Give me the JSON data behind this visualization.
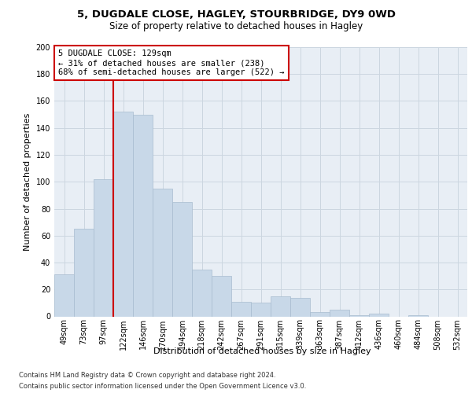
{
  "title_line1": "5, DUGDALE CLOSE, HAGLEY, STOURBRIDGE, DY9 0WD",
  "title_line2": "Size of property relative to detached houses in Hagley",
  "xlabel": "Distribution of detached houses by size in Hagley",
  "ylabel": "Number of detached properties",
  "footnote1": "Contains HM Land Registry data © Crown copyright and database right 2024.",
  "footnote2": "Contains public sector information licensed under the Open Government Licence v3.0.",
  "annotation_line1": "5 DUGDALE CLOSE: 129sqm",
  "annotation_line2": "← 31% of detached houses are smaller (238)",
  "annotation_line3": "68% of semi-detached houses are larger (522) →",
  "bar_color": "#c8d8e8",
  "bar_edge_color": "#a8bccf",
  "grid_color": "#ccd6e0",
  "background_color": "#e8eef5",
  "vline_color": "#cc0000",
  "annotation_box_edge_color": "#cc0000",
  "bin_labels": [
    "49sqm",
    "73sqm",
    "97sqm",
    "122sqm",
    "146sqm",
    "170sqm",
    "194sqm",
    "218sqm",
    "242sqm",
    "267sqm",
    "291sqm",
    "315sqm",
    "339sqm",
    "363sqm",
    "387sqm",
    "412sqm",
    "436sqm",
    "460sqm",
    "484sqm",
    "508sqm",
    "532sqm"
  ],
  "counts": [
    31,
    65,
    102,
    152,
    150,
    95,
    85,
    35,
    30,
    11,
    10,
    15,
    14,
    3,
    5,
    1,
    2,
    0,
    1,
    0,
    0
  ],
  "vline_bar_index": 3,
  "ylim": [
    0,
    200
  ],
  "yticks": [
    0,
    20,
    40,
    60,
    80,
    100,
    120,
    140,
    160,
    180,
    200
  ],
  "title1_fontsize": 9.5,
  "title2_fontsize": 8.5,
  "ylabel_fontsize": 8.0,
  "xlabel_fontsize": 8.0,
  "tick_fontsize": 7.0,
  "annot_fontsize": 7.5,
  "footnote_fontsize": 6.0
}
